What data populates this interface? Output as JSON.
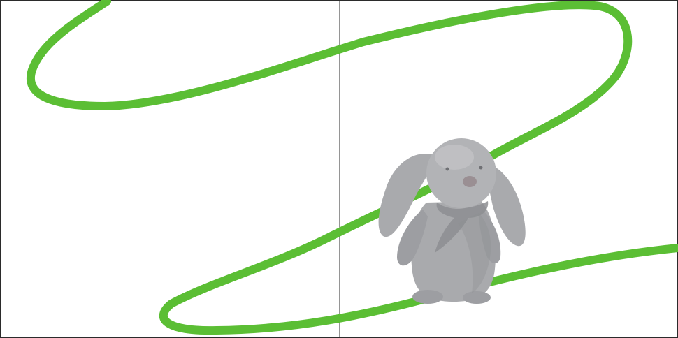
{
  "colors": {
    "background": "#ffffff",
    "stroke": "#5bbe34",
    "border": "#2b2b2b",
    "bunny_fur": "#a9aaad",
    "bunny_shadow": "#8d8e92",
    "bunny_highlight": "#c4c5c8",
    "bunny_nose": "#9a8f93"
  },
  "icons": {
    "scribble": "green-scribble-line",
    "toy": "plush-bunny"
  }
}
